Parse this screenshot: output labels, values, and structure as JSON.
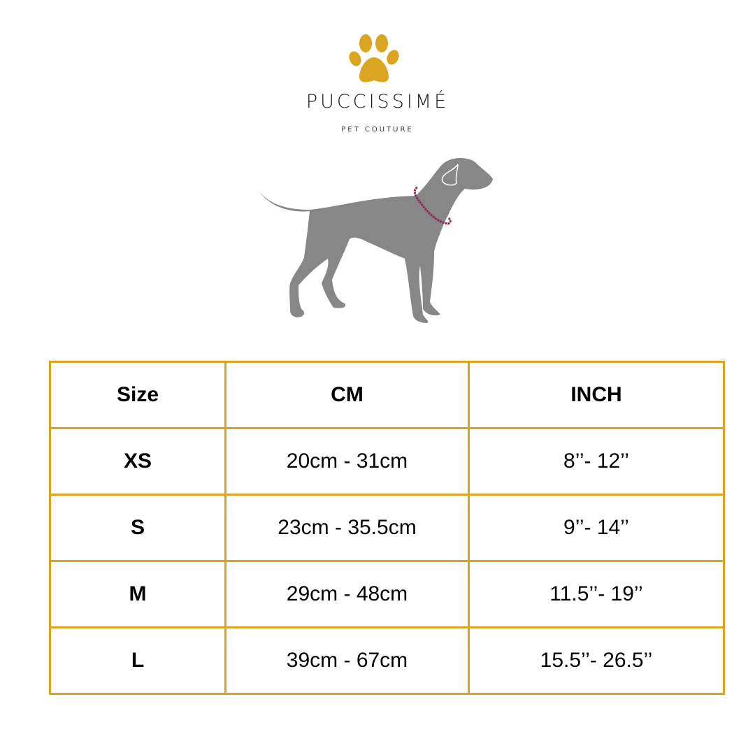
{
  "brand": {
    "name": "PUCCISSIMÉ",
    "tagline": "PET COUTURE",
    "logo_icon": "paw-icon",
    "accent_color": "#D9A520"
  },
  "illustration": {
    "icon": "dog-silhouette",
    "collar_color": "#8B2A5A",
    "body_color": "#878787"
  },
  "table": {
    "headers": [
      "Size",
      "CM",
      "INCH"
    ],
    "rows": [
      [
        "XS",
        "20cm - 31cm",
        "8’’- 12’’"
      ],
      [
        "S",
        "23cm - 35.5cm",
        "9’’- 14’’"
      ],
      [
        "M",
        "29cm - 48cm",
        "11.5’’- 19’’"
      ],
      [
        "L",
        "39cm - 67cm",
        "15.5’’- 26.5’’"
      ]
    ]
  }
}
